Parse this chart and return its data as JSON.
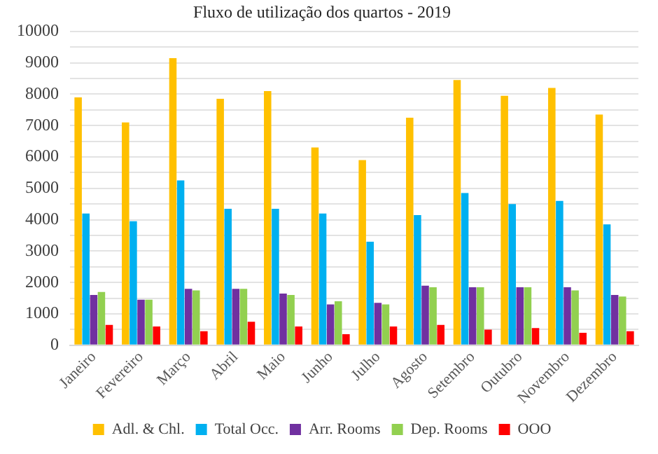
{
  "chart_data": {
    "type": "bar",
    "title": "Fluxo de utilização dos quartos - 2019",
    "categories": [
      "Janeiro",
      "Fevereiro",
      "Março",
      "Abril",
      "Maio",
      "Junho",
      "Julho",
      "Agosto",
      "Setembro",
      "Outubro",
      "Novembro",
      "Dezembro"
    ],
    "series": [
      {
        "name": "Adl. & Chl.",
        "color": "#ffc000",
        "values": [
          7900,
          7100,
          9150,
          7850,
          8100,
          6300,
          5900,
          7250,
          8450,
          7950,
          8200,
          7350
        ]
      },
      {
        "name": "Total Occ.",
        "color": "#00b0f0",
        "values": [
          4200,
          3950,
          5250,
          4350,
          4350,
          4200,
          3300,
          4150,
          4850,
          4500,
          4600,
          3850
        ]
      },
      {
        "name": "Arr. Rooms",
        "color": "#7030a0",
        "values": [
          1600,
          1450,
          1800,
          1800,
          1650,
          1300,
          1350,
          1900,
          1850,
          1850,
          1850,
          1600
        ]
      },
      {
        "name": "Dep. Rooms",
        "color": "#92d050",
        "values": [
          1700,
          1450,
          1750,
          1800,
          1600,
          1400,
          1300,
          1850,
          1850,
          1850,
          1750,
          1550
        ]
      },
      {
        "name": "OOO",
        "color": "#ff0000",
        "values": [
          650,
          600,
          450,
          750,
          600,
          350,
          600,
          650,
          500,
          550,
          400,
          450
        ]
      }
    ],
    "ylim": [
      0,
      10000
    ],
    "yticks": [
      0,
      {
        "value": 500,
        "label": null
      },
      1000,
      {
        "value": 1500,
        "label": null
      },
      2000,
      {
        "value": 2500,
        "label": null
      },
      3000,
      {
        "value": 3500,
        "label": null
      },
      4000,
      {
        "value": 4500,
        "label": null
      },
      5000,
      {
        "value": 5500,
        "label": null
      },
      6000,
      {
        "value": 6500,
        "label": null
      },
      7000,
      {
        "value": 7500,
        "label": null
      },
      8000,
      {
        "value": 8500,
        "label": null
      },
      9000,
      {
        "value": 9500,
        "label": null
      },
      10000
    ],
    "grid": "y",
    "legend": "bottom"
  }
}
